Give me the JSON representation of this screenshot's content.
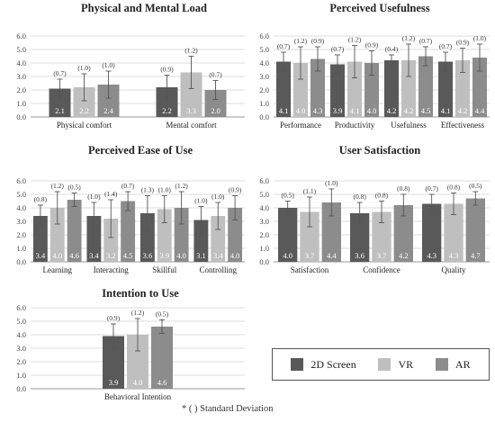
{
  "colors": {
    "2D Screen": "#595959",
    "VR": "#bfbfbf",
    "AR": "#8c8c8c"
  },
  "legend": {
    "items": [
      {
        "label": "2D Screen",
        "color": "#595959"
      },
      {
        "label": "VR",
        "color": "#bfbfbf"
      },
      {
        "label": "AR",
        "color": "#8c8c8c"
      }
    ]
  },
  "footnote": "* (  ) Standard Deviation",
  "chart_data": [
    {
      "type": "bar",
      "title": "Physical and Mental Load",
      "categories": [
        "Physical comfort",
        "Mental comfort"
      ],
      "ylim": [
        0,
        6
      ],
      "yticks": [
        "0.0",
        "1.0",
        "2.0",
        "3.0",
        "4.0",
        "5.0",
        "6.0"
      ],
      "series": [
        {
          "name": "2D Screen",
          "values": [
            2.1,
            2.2
          ],
          "sd": [
            0.7,
            0.9
          ]
        },
        {
          "name": "VR",
          "values": [
            2.2,
            3.3
          ],
          "sd": [
            1.0,
            1.2
          ]
        },
        {
          "name": "AR",
          "values": [
            2.4,
            2.0
          ],
          "sd": [
            1.0,
            0.7
          ]
        }
      ]
    },
    {
      "type": "bar",
      "title": "Perceived Usefulness",
      "categories": [
        "Performance",
        "Productivity",
        "Usefulness",
        "Effectiveness"
      ],
      "ylim": [
        0,
        6
      ],
      "yticks": [
        "0.0",
        "1.0",
        "2.0",
        "3.0",
        "4.0",
        "5.0",
        "6.0"
      ],
      "series": [
        {
          "name": "2D Screen",
          "values": [
            4.1,
            3.9,
            4.2,
            4.1
          ],
          "sd": [
            0.7,
            0.7,
            0.4,
            0.7
          ]
        },
        {
          "name": "VR",
          "values": [
            4.0,
            4.1,
            4.2,
            4.2
          ],
          "sd": [
            1.2,
            1.2,
            1.2,
            0.9
          ]
        },
        {
          "name": "AR",
          "values": [
            4.3,
            4.0,
            4.5,
            4.4
          ],
          "sd": [
            0.9,
            0.9,
            0.7,
            1.0
          ]
        }
      ]
    },
    {
      "type": "bar",
      "title": "Perceived Ease of Use",
      "categories": [
        "Learning",
        "Interacting",
        "Skillful",
        "Controlling"
      ],
      "ylim": [
        0,
        6
      ],
      "yticks": [
        "0.0",
        "1.0",
        "2.0",
        "3.0",
        "4.0",
        "5.0",
        "6.0"
      ],
      "series": [
        {
          "name": "2D Screen",
          "values": [
            3.4,
            3.4,
            3.6,
            3.1
          ],
          "sd": [
            0.8,
            1.0,
            1.3,
            1.0
          ]
        },
        {
          "name": "VR",
          "values": [
            4.0,
            3.2,
            3.9,
            3.4
          ],
          "sd": [
            1.2,
            1.4,
            1.0,
            1.0
          ]
        },
        {
          "name": "AR",
          "values": [
            4.6,
            4.5,
            4.0,
            4.0
          ],
          "sd": [
            0.5,
            0.7,
            1.2,
            0.9
          ]
        }
      ]
    },
    {
      "type": "bar",
      "title": "User Satisfaction",
      "categories": [
        "Satisfaction",
        "Confidence",
        "Quality"
      ],
      "ylim": [
        0,
        6
      ],
      "yticks": [
        "0.0",
        "1.0",
        "2.0",
        "3.0",
        "4.0",
        "5.0",
        "6.0"
      ],
      "series": [
        {
          "name": "2D Screen",
          "values": [
            4.0,
            3.6,
            4.3
          ],
          "sd": [
            0.5,
            0.8,
            0.7
          ]
        },
        {
          "name": "VR",
          "values": [
            3.7,
            3.7,
            4.3
          ],
          "sd": [
            1.1,
            0.8,
            0.8
          ]
        },
        {
          "name": "AR",
          "values": [
            4.4,
            4.2,
            4.7
          ],
          "sd": [
            1.0,
            0.8,
            0.5
          ]
        }
      ]
    },
    {
      "type": "bar",
      "title": "Intention to Use",
      "categories": [
        "Behavioral Intention"
      ],
      "ylim": [
        0,
        6
      ],
      "yticks": [
        "0.0",
        "1.0",
        "2.0",
        "3.0",
        "4.0",
        "5.0",
        "6.0"
      ],
      "series": [
        {
          "name": "2D Screen",
          "values": [
            3.9
          ],
          "sd": [
            0.9
          ]
        },
        {
          "name": "VR",
          "values": [
            4.0
          ],
          "sd": [
            1.2
          ]
        },
        {
          "name": "AR",
          "values": [
            4.6
          ],
          "sd": [
            0.5
          ]
        }
      ]
    }
  ]
}
